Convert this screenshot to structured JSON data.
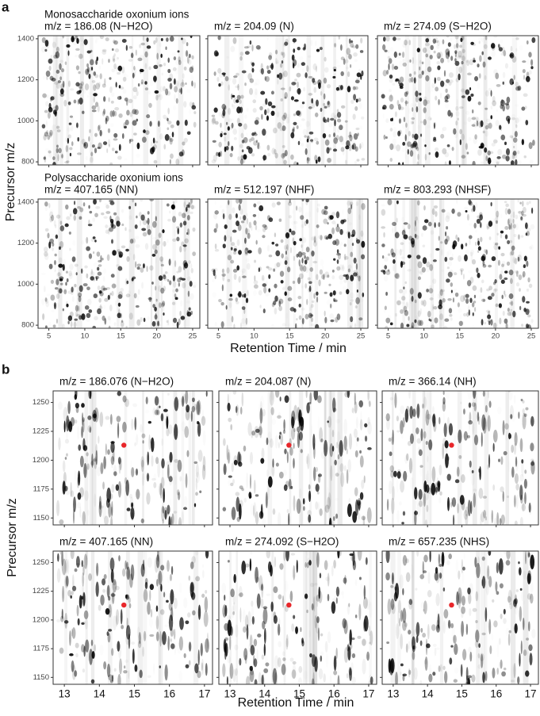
{
  "a": {
    "label": "a",
    "y_label": "Precursor m/z",
    "x_label": "Retention Time / min",
    "xlim": [
      3.5,
      26
    ],
    "xticks": [
      5,
      10,
      15,
      20,
      25
    ],
    "ylim": [
      785,
      1415
    ],
    "yticks": [
      800,
      1000,
      1200,
      1400
    ],
    "rows": [
      {
        "heading": "Monosaccharide oxonium ions",
        "titles": [
          "m/z = 186.08 (N−H2O)",
          "m/z = 204.09 (N)",
          "m/z = 274.09 (S−H2O)"
        ]
      },
      {
        "heading": "Polysaccharide oxonium ions",
        "titles": [
          "m/z = 407.165 (NN)",
          "m/z = 512.197 (NHF)",
          "m/z = 803.293 (NHSF)"
        ]
      }
    ]
  },
  "b": {
    "label": "b",
    "y_label": "Precursor m/z",
    "x_label": "Retention Time / min",
    "xlim": [
      12.68,
      17.23
    ],
    "xticks": [
      13,
      14,
      15,
      16,
      17
    ],
    "ylim": [
      1144,
      1260
    ],
    "yticks": [
      1150,
      1175,
      1200,
      1225,
      1250
    ],
    "marker": {
      "x": 14.7,
      "y": 1213,
      "color": "#e8262a"
    },
    "rows": [
      {
        "titles": [
          "m/z = 186.076 (N−H2O)",
          "m/z = 204.087 (N)",
          "m/z = 366.14 (NH)"
        ]
      },
      {
        "titles": [
          "m/z = 407.165 (NN)",
          "m/z = 274.092 (S−H2O)",
          "m/z = 657.235 (NHS)"
        ]
      }
    ]
  }
}
